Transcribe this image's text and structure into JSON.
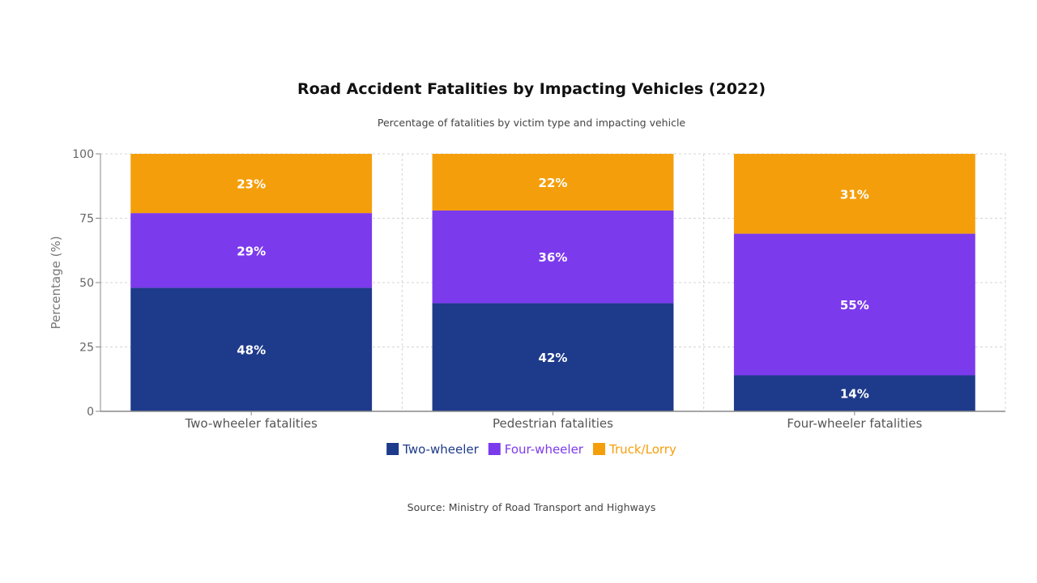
{
  "chart_data": {
    "type": "bar",
    "stacked": true,
    "title": "Road Accident Fatalities by Impacting Vehicles (2022)",
    "subtitle": "Percentage of fatalities by victim type and impacting vehicle",
    "source": "Source: Ministry of Road Transport and Highways",
    "xlabel": "",
    "ylabel": "Percentage (%)",
    "ylim": [
      0,
      100
    ],
    "yticks": [
      0,
      25,
      50,
      75,
      100
    ],
    "grid": true,
    "legend_position": "bottom-center",
    "categories": [
      "Two-wheeler fatalities",
      "Pedestrian fatalities",
      "Four-wheeler fatalities"
    ],
    "series": [
      {
        "name": "Two-wheeler",
        "color": "#1e3a8a",
        "values": [
          48,
          42,
          14
        ],
        "labels": [
          "48%",
          "42%",
          "14%"
        ]
      },
      {
        "name": "Four-wheeler",
        "color": "#7c3aed",
        "values": [
          29,
          36,
          55
        ],
        "labels": [
          "29%",
          "36%",
          "55%"
        ]
      },
      {
        "name": "Truck/Lorry",
        "color": "#f59e0b",
        "values": [
          23,
          22,
          31
        ],
        "labels": [
          "23%",
          "22%",
          "31%"
        ]
      }
    ]
  }
}
